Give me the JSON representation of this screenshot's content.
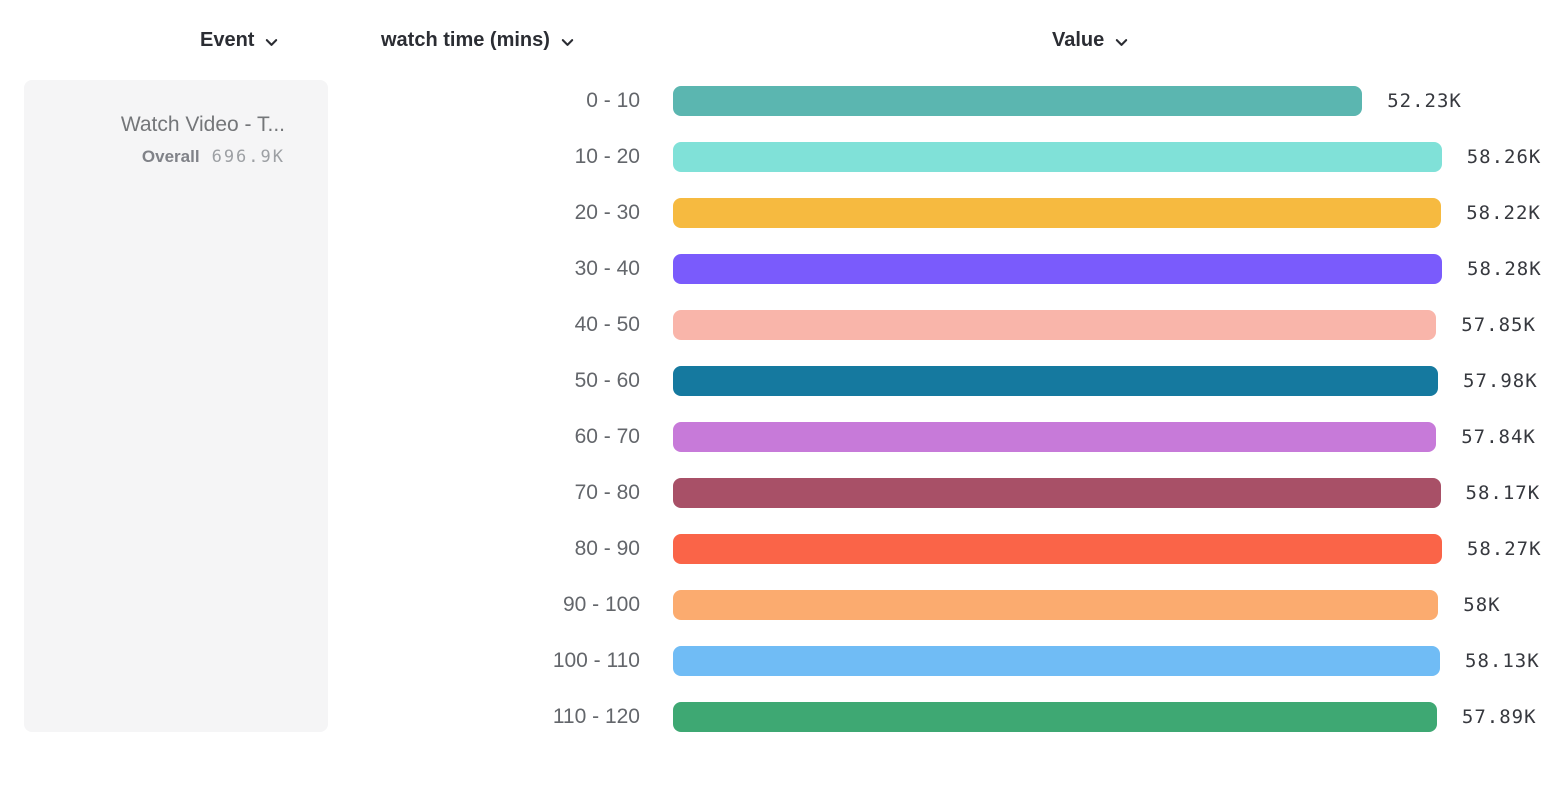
{
  "header": {
    "event": {
      "label": "Event"
    },
    "watch_time": {
      "label": "watch time (mins)"
    },
    "value": {
      "label": "Value"
    }
  },
  "event_card": {
    "title": "Watch Video - T...",
    "overall_label": "Overall",
    "overall_value": "696.9K"
  },
  "chart_data": {
    "type": "bar",
    "orientation": "horizontal",
    "title": "",
    "xlabel": "Value",
    "ylabel": "watch time (mins)",
    "series_name": "Watch Video - T... (Overall 696.9K)",
    "grid": false,
    "legend": false,
    "xlim": [
      0,
      58280
    ],
    "categories": [
      "0 - 10",
      "10 - 20",
      "20 - 30",
      "30 - 40",
      "40 - 50",
      "50 - 60",
      "60 - 70",
      "70 - 80",
      "80 - 90",
      "90 - 100",
      "100 - 110",
      "110 - 120"
    ],
    "values": [
      52230,
      58260,
      58220,
      58280,
      57850,
      57980,
      57840,
      58170,
      58270,
      58000,
      58130,
      57890
    ],
    "value_labels": [
      "52.23K",
      "58.26K",
      "58.22K",
      "58.28K",
      "57.85K",
      "57.98K",
      "57.84K",
      "58.17K",
      "58.27K",
      "58K",
      "58.13K",
      "57.89K"
    ],
    "bar_colors": [
      "#5bb6b0",
      "#80e1d8",
      "#f6ba40",
      "#7a5bfc",
      "#f9b5aa",
      "#15799f",
      "#c77ad9",
      "#a85067",
      "#fa6448",
      "#fbab6f",
      "#70bcf5",
      "#3ea873"
    ]
  },
  "icons": {
    "chevron_color": "#2b2d33"
  }
}
